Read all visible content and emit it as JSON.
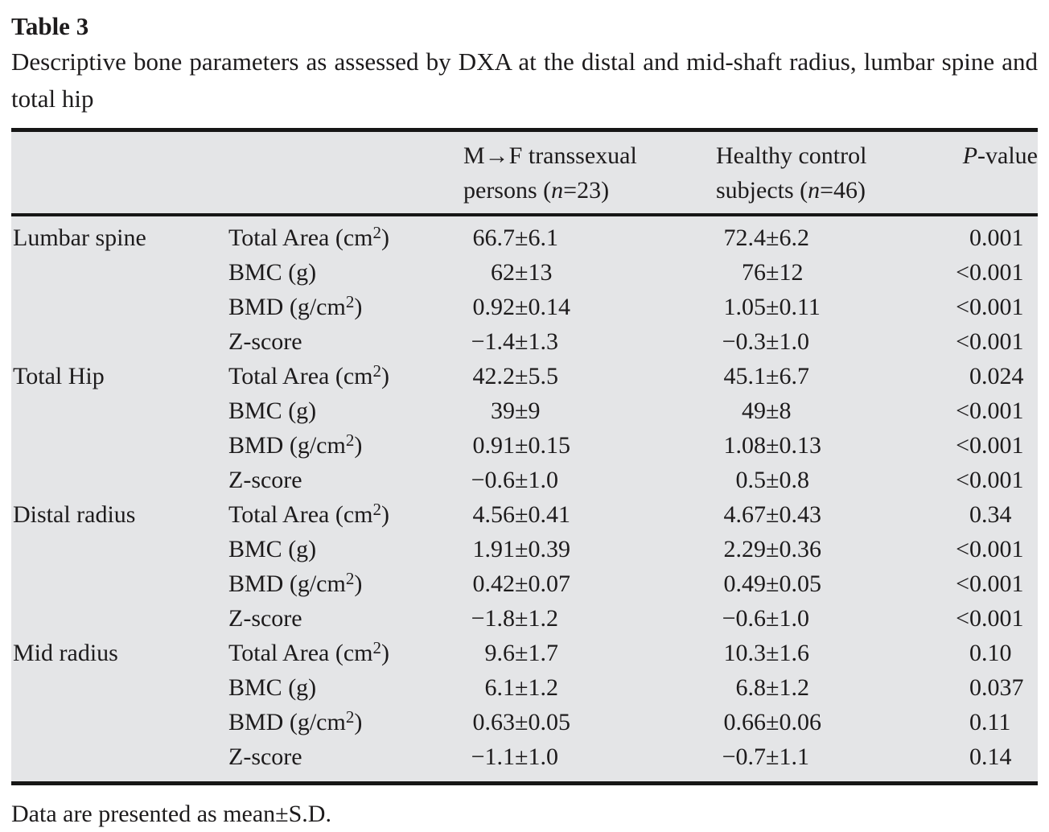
{
  "table": {
    "label": "Table 3",
    "caption": "Descriptive bone parameters as assessed by DXA at the distal and mid-shaft radius, lumbar spine and total hip",
    "footnote": "Data are presented as mean±S.D."
  },
  "columns": {
    "group_mf": {
      "line1": "M→F transsexual",
      "line2_pre": "persons (",
      "line2_italic": "n",
      "line2_post": "=23)"
    },
    "group_hc": {
      "line1": "Healthy control",
      "line2_pre": "subjects (",
      "line2_italic": "n",
      "line2_post": "=46)"
    },
    "pvalue": {
      "italic": "P",
      "post": "-value"
    }
  },
  "colors": {
    "table_background": "#e4e5e7",
    "rule": "#161616",
    "text": "#1d1b1c"
  },
  "rows": [
    {
      "region": "Lumbar spine",
      "param": "Total Area (cm²)",
      "mf": "66.7±6.1",
      "hc": "72.4±6.2",
      "p": "0.001"
    },
    {
      "region": "",
      "param": "BMC (g)",
      "mf": "62±13",
      "hc": "76±12",
      "p": "<0.001"
    },
    {
      "region": "",
      "param": "BMD (g/cm²)",
      "mf": "0.92±0.14",
      "hc": "1.05±0.11",
      "p": "<0.001"
    },
    {
      "region": "",
      "param": "Z-score",
      "mf": "−1.4±1.3",
      "hc": "−0.3±1.0",
      "p": "<0.001"
    },
    {
      "region": "Total Hip",
      "param": "Total Area (cm²)",
      "mf": "42.2±5.5",
      "hc": "45.1±6.7",
      "p": "0.024"
    },
    {
      "region": "",
      "param": "BMC (g)",
      "mf": "39±9",
      "hc": "49±8",
      "p": "<0.001"
    },
    {
      "region": "",
      "param": "BMD (g/cm²)",
      "mf": "0.91±0.15",
      "hc": "1.08±0.13",
      "p": "<0.001"
    },
    {
      "region": "",
      "param": "Z-score",
      "mf": "−0.6±1.0",
      "hc": "0.5±0.8",
      "p": "<0.001"
    },
    {
      "region": "Distal radius",
      "param": "Total Area (cm²)",
      "mf": "4.56±0.41",
      "hc": "4.67±0.43",
      "p": "0.34"
    },
    {
      "region": "",
      "param": "BMC (g)",
      "mf": "1.91±0.39",
      "hc": "2.29±0.36",
      "p": "<0.001"
    },
    {
      "region": "",
      "param": "BMD (g/cm²)",
      "mf": "0.42±0.07",
      "hc": "0.49±0.05",
      "p": "<0.001"
    },
    {
      "region": "",
      "param": "Z-score",
      "mf": "−1.8±1.2",
      "hc": "−0.6±1.0",
      "p": "<0.001"
    },
    {
      "region": "Mid radius",
      "param": "Total Area (cm²)",
      "mf": "9.6±1.7",
      "hc": "10.3±1.6",
      "p": "0.10"
    },
    {
      "region": "",
      "param": "BMC (g)",
      "mf": "6.1±1.2",
      "hc": "6.8±1.2",
      "p": "0.037"
    },
    {
      "region": "",
      "param": "BMD (g/cm²)",
      "mf": "0.63±0.05",
      "hc": "0.66±0.06",
      "p": "0.11"
    },
    {
      "region": "",
      "param": "Z-score",
      "mf": "−1.1±1.0",
      "hc": "−0.7±1.1",
      "p": "0.14"
    }
  ]
}
